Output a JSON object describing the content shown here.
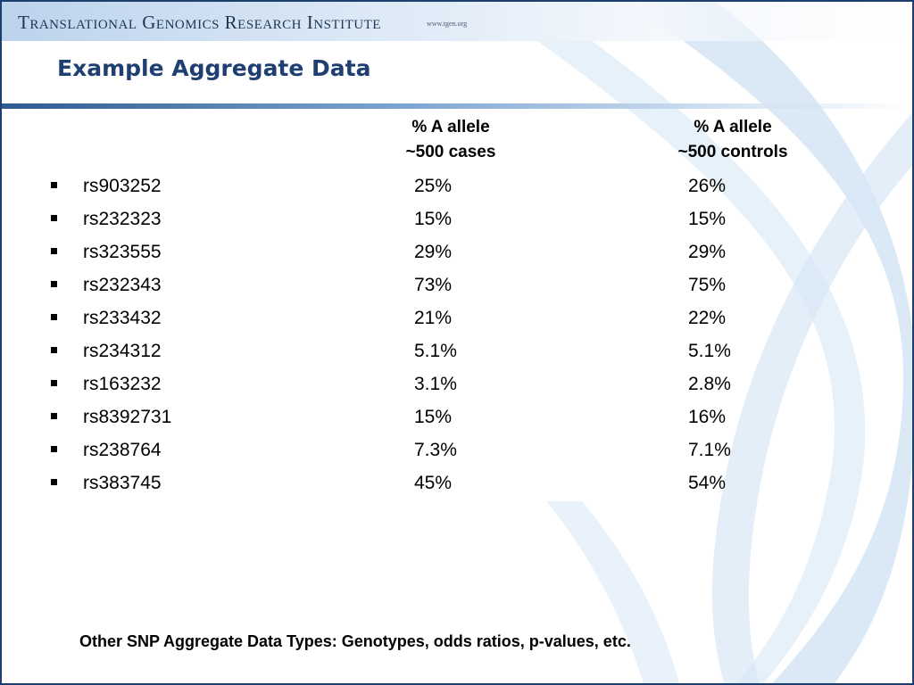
{
  "header": {
    "organization": "Translational Genomics Research Institute",
    "url": "www.tgen.org"
  },
  "slide": {
    "title": "Example Aggregate Data",
    "columns": {
      "cases": {
        "line1": "% A allele",
        "line2": "~500 cases"
      },
      "controls": {
        "line1": "% A allele",
        "line2": "~500 controls"
      }
    },
    "rows": [
      {
        "snp": "rs903252",
        "cases": "25%",
        "controls": "26%"
      },
      {
        "snp": "rs232323",
        "cases": "15%",
        "controls": "15%"
      },
      {
        "snp": "rs323555",
        "cases": "29%",
        "controls": "29%"
      },
      {
        "snp": "rs232343",
        "cases": "73%",
        "controls": "75%"
      },
      {
        "snp": "rs233432",
        "cases": "21%",
        "controls": "22%"
      },
      {
        "snp": "rs234312",
        "cases": "5.1%",
        "controls": "5.1%"
      },
      {
        "snp": "rs163232",
        "cases": "3.1%",
        "controls": "2.8%"
      },
      {
        "snp": "rs8392731",
        "cases": "15%",
        "controls": "16%"
      },
      {
        "snp": "rs238764",
        "cases": "7.3%",
        "controls": "7.1%"
      },
      {
        "snp": "rs383745",
        "cases": "45%",
        "controls": "54%"
      }
    ],
    "footnote": "Other SNP Aggregate Data Types: Genotypes, odds ratios, p-values, etc."
  },
  "theme": {
    "title_color": "#1f3f72",
    "accent_blue": "#2d5b8e",
    "ribbon_blue": "#c9def2"
  }
}
